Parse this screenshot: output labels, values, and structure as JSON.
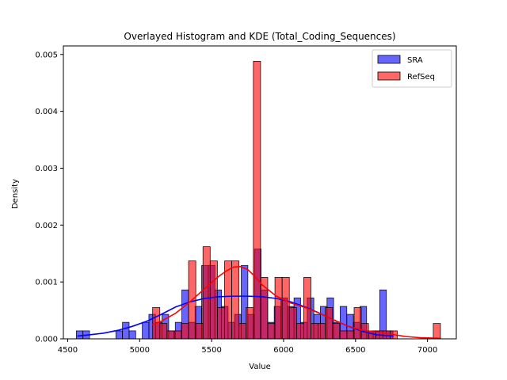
{
  "chart_data": {
    "type": "histogram",
    "title": "Overlayed Histogram and KDE (Total_Coding_Sequences)",
    "xlabel": "Value",
    "ylabel": "Density",
    "xlim": [
      4470,
      7200
    ],
    "ylim": [
      0,
      0.00515
    ],
    "xticks": [
      4500,
      5000,
      5500,
      6000,
      6500,
      7000
    ],
    "yticks": [
      0,
      0.001,
      0.002,
      0.003,
      0.004,
      0.005
    ],
    "ytick_labels": [
      "0.000",
      "0.001",
      "0.002",
      "0.003",
      "0.004",
      "0.005"
    ],
    "legend_position": "top-right",
    "series": [
      {
        "name": "SRA",
        "color": "#0000ff",
        "bar_alpha": 0.6,
        "bins_range": [
          4560,
          6760
        ],
        "densities": [
          0.00014,
          0.00014,
          0,
          0,
          0,
          0,
          0.00014,
          0.00029,
          0.00014,
          0,
          0.00029,
          0.00043,
          0.00029,
          0.00043,
          0.00014,
          0.00029,
          0.00086,
          0.00029,
          0.00057,
          0.00129,
          0.00129,
          0.00086,
          0.00057,
          0.00029,
          0.00043,
          0.00129,
          0.00043,
          0.00158,
          0.00086,
          0.00029,
          0.00057,
          0.00072,
          0.00057,
          0.00072,
          0.00029,
          0.00072,
          0.00043,
          0.00057,
          0.00072,
          0.00029,
          0.00057,
          0.00043,
          0.00029,
          0.00057,
          0.00014,
          0.00014,
          0.00086,
          0.00014
        ],
        "kde": {
          "x": [
            4570,
            4650,
            4750,
            4850,
            4950,
            5050,
            5150,
            5250,
            5350,
            5450,
            5550,
            5650,
            5750,
            5850,
            5950,
            6050,
            6150,
            6250,
            6350,
            6450,
            6550,
            6650,
            6760
          ],
          "y": [
            5e-05,
            7e-05,
            0.0001,
            0.00015,
            0.00022,
            0.00031,
            0.00043,
            0.00056,
            0.00065,
            0.00071,
            0.00074,
            0.00075,
            0.00075,
            0.00074,
            0.00071,
            0.00065,
            0.00056,
            0.00045,
            0.00033,
            0.00022,
            0.00013,
            7e-05,
            5e-05
          ]
        }
      },
      {
        "name": "RefSeq",
        "color": "#ff0000",
        "bar_alpha": 0.6,
        "bins_range": [
          5090,
          7090
        ],
        "densities": [
          0.00055,
          0.00027,
          0.00014,
          0.00014,
          0.00027,
          0.00137,
          0.00027,
          0.00162,
          0.00137,
          0.00055,
          0.00137,
          0.00137,
          0.00027,
          0.00055,
          0.00488,
          0.00108,
          0.00027,
          0.00108,
          0.00108,
          0.00055,
          0.00027,
          0.00108,
          0.00027,
          0.00027,
          0.00055,
          0.00027,
          0.00014,
          0.00014,
          0.00055,
          0.00027,
          0.00014,
          0.00014,
          0.00014,
          0.00014,
          0,
          0,
          0,
          0,
          0,
          0.00027
        ],
        "kde": {
          "x": [
            5090,
            5150,
            5250,
            5350,
            5450,
            5550,
            5600,
            5650,
            5700,
            5750,
            5800,
            5850,
            5950,
            6050,
            6150,
            6250,
            6350,
            6450,
            6550,
            6650,
            6750,
            6850,
            6950,
            7090
          ],
          "y": [
            0.00025,
            0.00031,
            0.00045,
            0.00065,
            0.00088,
            0.0011,
            0.00119,
            0.00126,
            0.00127,
            0.00122,
            0.0011,
            0.00095,
            0.00075,
            0.00063,
            0.00055,
            0.00045,
            0.00033,
            0.00022,
            0.00015,
            0.00012,
            8e-05,
            4e-05,
            2e-05,
            1e-05
          ]
        }
      }
    ]
  }
}
